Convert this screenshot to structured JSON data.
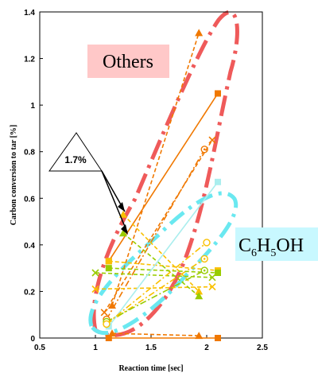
{
  "chart_data": {
    "type": "scatter",
    "title": "",
    "xlabel": "Reaction time [sec]",
    "ylabel": "Carbon conversion to tar [%]",
    "xlim": [
      0.5,
      2.5
    ],
    "ylim": [
      0,
      1.4
    ],
    "x_ticks": [
      "0.5",
      "1",
      "1.5",
      "2",
      "2.5"
    ],
    "y_ticks": [
      "0",
      "0.2",
      "0.4",
      "0.6",
      "0.8",
      "1",
      "1.2",
      "1.4"
    ],
    "grid": false,
    "legend": "none",
    "series": [
      {
        "marker": "square",
        "color": "#f07800",
        "line": "solid",
        "points": [
          [
            1.12,
            0.33
          ],
          [
            2.1,
            1.05
          ]
        ]
      },
      {
        "marker": "triangle",
        "color": "#f07800",
        "line": "dash",
        "points": [
          [
            1.15,
            0.14
          ],
          [
            1.93,
            1.31
          ]
        ]
      },
      {
        "marker": "circled-dot",
        "color": "#f07800",
        "line": "dash-dot",
        "points": [
          [
            1.1,
            0.08
          ],
          [
            1.98,
            0.81
          ]
        ]
      },
      {
        "marker": "x",
        "color": "#f07800",
        "line": "dash",
        "points": [
          [
            1.08,
            0.11
          ],
          [
            2.05,
            0.85
          ]
        ]
      },
      {
        "marker": "square",
        "color": "#f07800",
        "line": "solid",
        "points": [
          [
            1.12,
            0.0
          ],
          [
            2.1,
            0.0
          ]
        ]
      },
      {
        "marker": "square",
        "color": "#f9c000",
        "line": "dash",
        "points": [
          [
            1.12,
            0.33
          ],
          [
            2.1,
            0.29
          ]
        ]
      },
      {
        "marker": "triangle",
        "color": "#f9c000",
        "line": "dash",
        "points": [
          [
            1.25,
            0.53
          ],
          [
            1.93,
            0.2
          ]
        ]
      },
      {
        "marker": "circled-dot",
        "color": "#f9c000",
        "line": "dash-dot",
        "points": [
          [
            1.1,
            0.06
          ],
          [
            1.98,
            0.34
          ]
        ]
      },
      {
        "marker": "x",
        "color": "#f9c000",
        "line": "dash",
        "points": [
          [
            1.0,
            0.21
          ],
          [
            2.05,
            0.22
          ]
        ]
      },
      {
        "marker": "square",
        "color": "#99cc00",
        "line": "dash",
        "points": [
          [
            1.12,
            0.3
          ],
          [
            2.1,
            0.28
          ]
        ]
      },
      {
        "marker": "triangle",
        "color": "#99cc00",
        "line": "dash",
        "points": [
          [
            1.25,
            0.45
          ],
          [
            1.93,
            0.18
          ]
        ]
      },
      {
        "marker": "circled-dot",
        "color": "#99cc00",
        "line": "dash-dot",
        "points": [
          [
            1.1,
            0.07
          ],
          [
            1.98,
            0.29
          ]
        ]
      },
      {
        "marker": "x",
        "color": "#99cc00",
        "line": "dash",
        "points": [
          [
            1.0,
            0.28
          ],
          [
            2.05,
            0.26
          ]
        ]
      },
      {
        "marker": "square",
        "color": "#aaeeee",
        "line": "solid",
        "points": [
          [
            1.12,
            0.05
          ],
          [
            2.1,
            0.67
          ]
        ]
      },
      {
        "marker": "circle",
        "color": "#f9c000",
        "line": "dash-dot",
        "points": [
          [
            1.1,
            0.06
          ],
          [
            2.0,
            0.41
          ]
        ]
      },
      {
        "marker": "triangle",
        "color": "#f07800",
        "line": "dash",
        "points": [
          [
            1.15,
            0.02
          ],
          [
            1.93,
            0.01
          ]
        ]
      }
    ],
    "annotations": [
      {
        "text": "Others",
        "color": "#e85050",
        "background": "#ffc8c8"
      },
      {
        "text_base": "C",
        "sub1": "6",
        "mid": "H",
        "sub2": "5",
        "tail": "OH",
        "color": "#70e8f0",
        "background": "#c8f8ff"
      },
      {
        "text": "1.7%"
      }
    ]
  }
}
